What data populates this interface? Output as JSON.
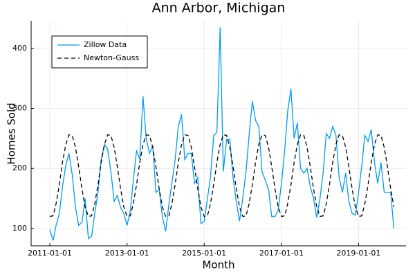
{
  "chart_data": {
    "type": "line",
    "title": "Ann Arbor, Michigan",
    "x_label": "Month",
    "y_label": "Homes Sold",
    "x": [
      "2011-01-01",
      "2011-02-01",
      "2011-03-01",
      "2011-04-01",
      "2011-05-01",
      "2011-06-01",
      "2011-07-01",
      "2011-08-01",
      "2011-09-01",
      "2011-10-01",
      "2011-11-01",
      "2011-12-01",
      "2012-01-01",
      "2012-02-01",
      "2012-03-01",
      "2012-04-01",
      "2012-05-01",
      "2012-06-01",
      "2012-07-01",
      "2012-08-01",
      "2012-09-01",
      "2012-10-01",
      "2012-11-01",
      "2012-12-01",
      "2013-01-01",
      "2013-02-01",
      "2013-03-01",
      "2013-04-01",
      "2013-05-01",
      "2013-06-01",
      "2013-07-01",
      "2013-08-01",
      "2013-09-01",
      "2013-10-01",
      "2013-11-01",
      "2013-12-01",
      "2014-01-01",
      "2014-02-01",
      "2014-03-01",
      "2014-04-01",
      "2014-05-01",
      "2014-06-01",
      "2014-07-01",
      "2014-08-01",
      "2014-09-01",
      "2014-10-01",
      "2014-11-01",
      "2014-12-01",
      "2015-01-01",
      "2015-02-01",
      "2015-03-01",
      "2015-04-01",
      "2015-05-01",
      "2015-06-01",
      "2015-07-01",
      "2015-08-01",
      "2015-09-01",
      "2015-10-01",
      "2015-11-01",
      "2015-12-01",
      "2016-01-01",
      "2016-02-01",
      "2016-03-01",
      "2016-04-01",
      "2016-05-01",
      "2016-06-01",
      "2016-07-01",
      "2016-08-01",
      "2016-09-01",
      "2016-10-01",
      "2016-11-01",
      "2016-12-01",
      "2017-01-01",
      "2017-02-01",
      "2017-03-01",
      "2017-04-01",
      "2017-05-01",
      "2017-06-01",
      "2017-07-01",
      "2017-08-01",
      "2017-09-01",
      "2017-10-01",
      "2017-11-01",
      "2017-12-01",
      "2018-01-01",
      "2018-02-01",
      "2018-03-01",
      "2018-04-01",
      "2018-05-01",
      "2018-06-01",
      "2018-07-01",
      "2018-08-01",
      "2018-09-01",
      "2018-10-01",
      "2018-11-01",
      "2018-12-01",
      "2019-01-01",
      "2019-02-01",
      "2019-03-01",
      "2019-04-01",
      "2019-05-01",
      "2019-06-01",
      "2019-07-01",
      "2019-08-01",
      "2019-09-01",
      "2019-10-01",
      "2019-11-01",
      "2019-12-01"
    ],
    "series": [
      {
        "name": "Zillow Data",
        "color": "#009af9",
        "linestyle": "solid",
        "values": [
          98,
          80,
          105,
          125,
          170,
          205,
          225,
          190,
          135,
          105,
          110,
          150,
          83,
          87,
          125,
          160,
          215,
          240,
          232,
          195,
          145,
          155,
          135,
          125,
          105,
          130,
          180,
          230,
          215,
          320,
          250,
          225,
          238,
          160,
          165,
          120,
          95,
          140,
          175,
          215,
          270,
          290,
          215,
          225,
          225,
          175,
          185,
          108,
          112,
          150,
          185,
          255,
          260,
          435,
          195,
          248,
          248,
          185,
          145,
          112,
          150,
          195,
          255,
          312,
          280,
          270,
          195,
          180,
          165,
          120,
          120,
          130,
          175,
          230,
          295,
          333,
          250,
          276,
          200,
          192,
          200,
          170,
          150,
          118,
          150,
          195,
          258,
          250,
          270,
          255,
          185,
          160,
          192,
          145,
          125,
          122,
          160,
          205,
          255,
          245,
          265,
          210,
          175,
          210,
          160,
          160,
          160,
          100
        ]
      },
      {
        "name": "Newton-Gauss",
        "color": "#000000",
        "linestyle": "dashed",
        "values": [
          120,
          121,
          141,
          173,
          210,
          240,
          256,
          255,
          235,
          203,
          166,
          136,
          120,
          121,
          141,
          173,
          210,
          240,
          256,
          255,
          235,
          203,
          166,
          136,
          120,
          121,
          141,
          173,
          210,
          240,
          256,
          255,
          235,
          203,
          166,
          136,
          120,
          121,
          141,
          173,
          210,
          240,
          256,
          255,
          235,
          203,
          166,
          136,
          120,
          121,
          141,
          173,
          210,
          240,
          256,
          255,
          235,
          203,
          166,
          136,
          120,
          121,
          141,
          173,
          210,
          240,
          256,
          255,
          235,
          203,
          166,
          136,
          120,
          121,
          141,
          173,
          210,
          240,
          256,
          255,
          235,
          203,
          166,
          136,
          120,
          121,
          141,
          173,
          210,
          240,
          256,
          255,
          235,
          203,
          166,
          136,
          120,
          121,
          141,
          173,
          210,
          240,
          256,
          255,
          235,
          203,
          166,
          136
        ]
      }
    ],
    "xlim": [
      "2010-07-08",
      "2020-03-25"
    ],
    "xticks": [
      "2011-01-01",
      "2013-01-01",
      "2015-01-01",
      "2017-01-01",
      "2019-01-01"
    ],
    "ylim": [
      71,
      446
    ],
    "yticks": [
      100,
      200,
      300,
      400
    ],
    "grid": true,
    "legend": "top left"
  }
}
